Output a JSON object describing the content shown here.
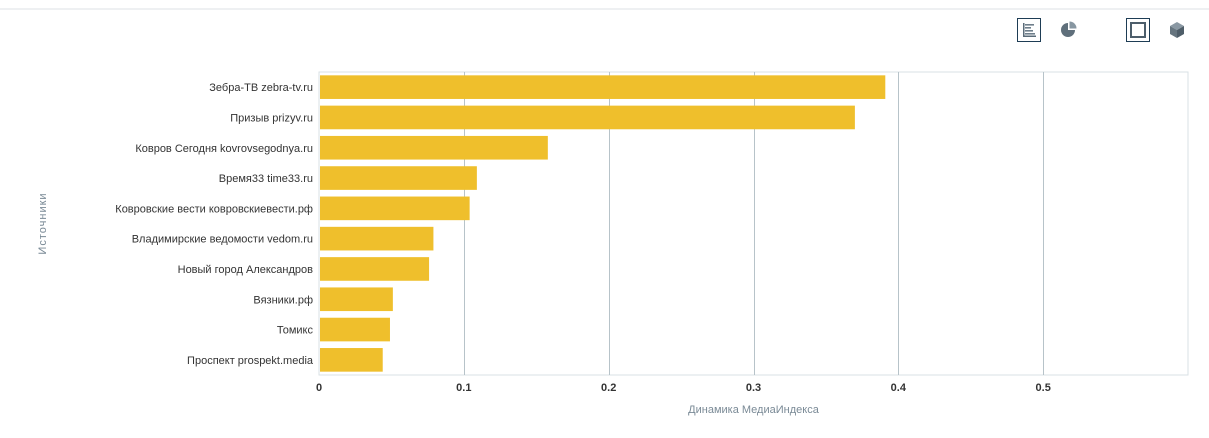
{
  "toolbar": {
    "buttons": [
      {
        "icon": "bar-chart-icon",
        "active": true
      },
      {
        "icon": "pie-chart-icon",
        "active": false
      },
      {
        "icon": "flat-2d-icon",
        "active": true
      },
      {
        "icon": "cube-3d-icon",
        "active": false
      }
    ]
  },
  "chart_data": {
    "type": "bar",
    "orientation": "horizontal",
    "categories": [
      "Зебра-ТВ zebra-tv.ru",
      "Призыв prizyv.ru",
      "Ковров Сегодня kovrovsegodnya.ru",
      "Время33 time33.ru",
      "Ковровские вести ковровскиевести.рф",
      "Владимирские ведомости vedom.ru",
      "Новый город Александров",
      "Вязники.рф",
      "Томикс",
      "Проспект prospekt.media"
    ],
    "values": [
      0.391,
      0.37,
      0.158,
      0.109,
      0.104,
      0.079,
      0.076,
      0.051,
      0.049,
      0.044
    ],
    "xlabel": "Динамика МедиаИндекса",
    "ylabel": "Источники",
    "xlim": [
      0,
      0.6
    ],
    "xticks": [
      0,
      0.1,
      0.2,
      0.3,
      0.4,
      0.5
    ],
    "xtick_labels": [
      "0",
      "0.1",
      "0.2",
      "0.3",
      "0.4",
      "0.5"
    ],
    "grid": true,
    "colors": {
      "bar": "#efbf2c",
      "grid": "#b7c3c9",
      "plot_border": "#d9e1e5"
    }
  }
}
